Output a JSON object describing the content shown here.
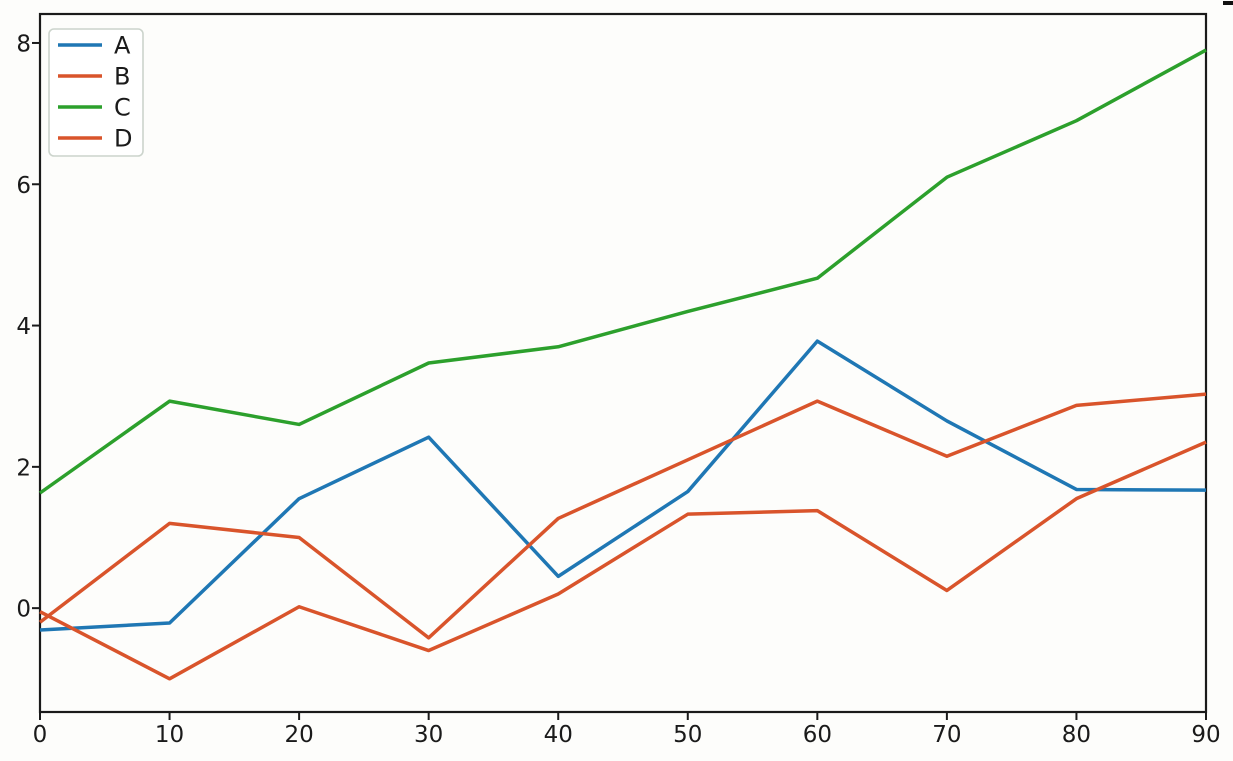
{
  "figure": {
    "background": "#fdfdfb",
    "spine_color": "#1a1a1a",
    "tick_label_color": "#1a1a1a",
    "corner_mark_color": "#111111"
  },
  "legend": {
    "position": "upper-left",
    "border_color": "#ccd4cc",
    "fill_color": "#ffffff",
    "entries": [
      {
        "label": "A",
        "color": "#1f77b4"
      },
      {
        "label": "B",
        "color": "#d9542b"
      },
      {
        "label": "C",
        "color": "#2ca02c"
      },
      {
        "label": "D",
        "color": "#d9542b"
      }
    ]
  },
  "chart_data": {
    "type": "line",
    "title": "",
    "xlabel": "",
    "ylabel": "",
    "x": [
      0,
      10,
      20,
      30,
      40,
      50,
      60,
      70,
      80,
      90
    ],
    "series": [
      {
        "name": "A",
        "color": "#1f77b4",
        "values": [
          -0.31,
          -0.21,
          1.55,
          2.42,
          0.45,
          1.65,
          3.78,
          2.65,
          1.68,
          1.67
        ]
      },
      {
        "name": "B",
        "color": "#d9542b",
        "values": [
          -0.2,
          1.2,
          1.0,
          -0.42,
          1.27,
          2.1,
          2.93,
          2.15,
          2.87,
          3.03
        ]
      },
      {
        "name": "C",
        "color": "#2ca02c",
        "values": [
          1.63,
          2.93,
          2.6,
          3.47,
          3.7,
          4.2,
          4.67,
          6.1,
          6.9,
          7.9
        ]
      },
      {
        "name": "D",
        "color": "#d9542b",
        "values": [
          -0.05,
          -1.0,
          0.02,
          -0.6,
          0.2,
          1.33,
          1.38,
          0.25,
          1.55,
          2.35
        ]
      }
    ],
    "xlim": [
      0,
      90
    ],
    "ylim": [
      -1.47,
      8.41
    ],
    "x_ticks": [
      "0",
      "10",
      "20",
      "30",
      "40",
      "50",
      "60",
      "70",
      "80",
      "90"
    ],
    "x_tick_values": [
      0,
      10,
      20,
      30,
      40,
      50,
      60,
      70,
      80,
      90
    ],
    "y_ticks": [
      "0",
      "2",
      "4",
      "6",
      "8"
    ],
    "y_tick_values": [
      0,
      2,
      4,
      6,
      8
    ],
    "grid": false,
    "legend_position": "upper left"
  }
}
